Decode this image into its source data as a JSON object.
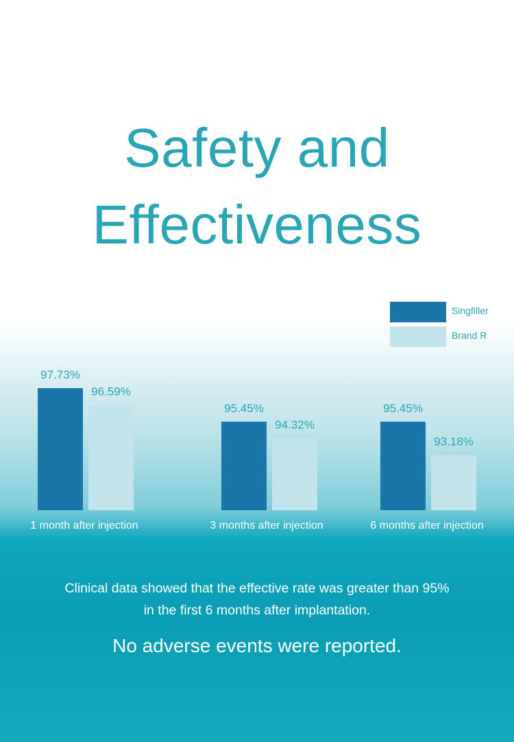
{
  "title": {
    "line1": "Safety and",
    "line2": "Effectiveness"
  },
  "legend": [
    {
      "label": "Singfiller",
      "color": "#1a76a8"
    },
    {
      "label": "Brand R",
      "color": "#c2e5ed"
    }
  ],
  "chart_data": {
    "type": "bar",
    "categories": [
      "1 month after injection",
      "3 months after injection",
      "6 months after injection"
    ],
    "series": [
      {
        "name": "Singfiller",
        "values": [
          97.73,
          95.45,
          95.45
        ],
        "labels": [
          "97.73%",
          "95.45%",
          "95.45%"
        ],
        "color": "#1a76a8"
      },
      {
        "name": "Brand R",
        "values": [
          96.59,
          94.32,
          93.18
        ],
        "labels": [
          "96.59%",
          "94.32%",
          "93.18%"
        ],
        "color": "#c2e5ed"
      }
    ],
    "title": "Safety and Effectiveness",
    "xlabel": "",
    "ylabel": "",
    "ylim": [
      89.43,
      97.73
    ],
    "grid": false,
    "legend_position": "top-right"
  },
  "footer": {
    "clinical_line1": "Clinical data showed that the effective rate was greater than 95%",
    "clinical_line2": "in the first 6 months after implantation.",
    "adverse": "No adverse events were reported."
  }
}
